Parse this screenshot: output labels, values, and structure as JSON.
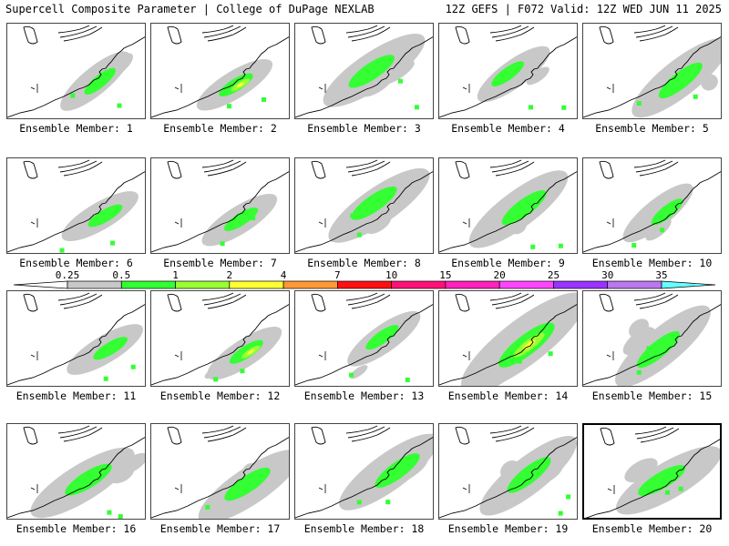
{
  "header": {
    "left": "Supercell Composite Parameter | College of DuPage NEXLAB",
    "right": "12Z GEFS | F072 Valid: 12Z WED JUN 11 2025"
  },
  "members": [
    {
      "label": "Ensemble Member: 1",
      "intensity": 2,
      "spread": 1
    },
    {
      "label": "Ensemble Member: 2",
      "intensity": 3,
      "spread": 1
    },
    {
      "label": "Ensemble Member: 3",
      "intensity": 2,
      "spread": 2
    },
    {
      "label": "Ensemble Member: 4",
      "intensity": 1,
      "spread": 1
    },
    {
      "label": "Ensemble Member: 5",
      "intensity": 2,
      "spread": 2
    },
    {
      "label": "Ensemble Member: 6",
      "intensity": 2,
      "spread": 1
    },
    {
      "label": "Ensemble Member: 7",
      "intensity": 2,
      "spread": 1
    },
    {
      "label": "Ensemble Member: 8",
      "intensity": 2,
      "spread": 2
    },
    {
      "label": "Ensemble Member: 9",
      "intensity": 2,
      "spread": 2
    },
    {
      "label": "Ensemble Member: 10",
      "intensity": 1,
      "spread": 1
    },
    {
      "label": "Ensemble Member: 11",
      "intensity": 2,
      "spread": 1
    },
    {
      "label": "Ensemble Member: 12",
      "intensity": 3,
      "spread": 1
    },
    {
      "label": "Ensemble Member: 13",
      "intensity": 2,
      "spread": 1
    },
    {
      "label": "Ensemble Member: 14",
      "intensity": 3,
      "spread": 3
    },
    {
      "label": "Ensemble Member: 15",
      "intensity": 2,
      "spread": 2
    },
    {
      "label": "Ensemble Member: 16",
      "intensity": 2,
      "spread": 2
    },
    {
      "label": "Ensemble Member: 17",
      "intensity": 2,
      "spread": 2
    },
    {
      "label": "Ensemble Member: 18",
      "intensity": 2,
      "spread": 2
    },
    {
      "label": "Ensemble Member: 19",
      "intensity": 2,
      "spread": 2
    },
    {
      "label": "Ensemble Member: 20",
      "intensity": 2,
      "spread": 2,
      "highlighted": true
    }
  ],
  "colorbar": {
    "thresholds": [
      "0.25",
      "0.5",
      "1",
      "2",
      "4",
      "7",
      "10",
      "15",
      "20",
      "25",
      "30",
      "35"
    ],
    "colors": [
      "#c8c8c8",
      "#33ff33",
      "#99ff33",
      "#ffff33",
      "#ff9933",
      "#ff1111",
      "#ff1177",
      "#ff22bb",
      "#ff44ff",
      "#9933ff",
      "#bb77ee",
      "#66ffff"
    ]
  },
  "map_colors": {
    "light": "#c8c8c8",
    "mid": "#33ff33",
    "high": "#99ff33",
    "top": "#ffff33",
    "coast": "#000000"
  }
}
